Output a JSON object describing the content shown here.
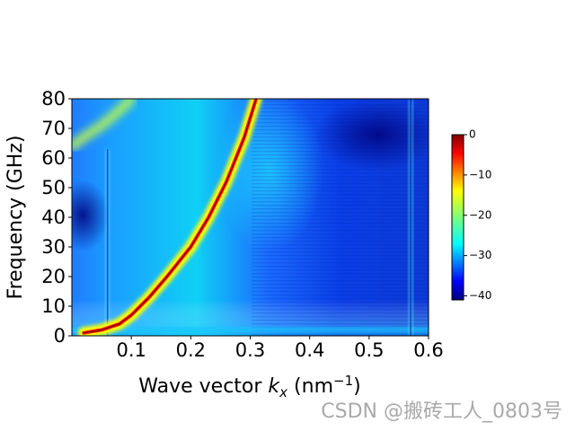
{
  "chart_data": {
    "type": "heatmap",
    "title": "",
    "xlabel_prefix": "Wave vector ",
    "xlabel_var": "k",
    "xlabel_sub": "x",
    "xlabel_unit_open": " (nm",
    "xlabel_unit_sup": "−1",
    "xlabel_unit_close": ")",
    "ylabel": "Frequency (GHz)",
    "xlim": [
      0.0,
      0.6
    ],
    "ylim": [
      0,
      80
    ],
    "x_ticks": [
      0.1,
      0.2,
      0.3,
      0.4,
      0.5,
      0.6
    ],
    "x_tick_labels": [
      "0.1",
      "0.2",
      "0.3",
      "0.4",
      "0.5",
      "0.6"
    ],
    "y_ticks": [
      0,
      10,
      20,
      30,
      40,
      50,
      60,
      70,
      80
    ],
    "y_tick_labels": [
      "0",
      "10",
      "20",
      "30",
      "40",
      "50",
      "60",
      "70",
      "80"
    ],
    "colormap": "jet",
    "colorbar": {
      "range": [
        -41,
        0
      ],
      "ticks": [
        0,
        -10,
        -20,
        -30,
        -40
      ],
      "tick_labels": [
        "0",
        "−10",
        "−20",
        "−30",
        "−40"
      ]
    },
    "dispersion_branch": {
      "name": "",
      "x": [
        0.02,
        0.05,
        0.08,
        0.1,
        0.13,
        0.16,
        0.2,
        0.23,
        0.26,
        0.29,
        0.31
      ],
      "y": [
        1,
        2,
        4,
        7,
        13,
        20,
        30,
        40,
        52,
        67,
        80
      ]
    },
    "upper_branch": {
      "x": [
        0.0,
        0.02,
        0.05,
        0.08,
        0.1
      ],
      "y": [
        64,
        67,
        71,
        76,
        80
      ]
    },
    "vertical_features_x": [
      0.06,
      0.57
    ]
  },
  "watermark": "CSDN @搬砖工人_0803号"
}
